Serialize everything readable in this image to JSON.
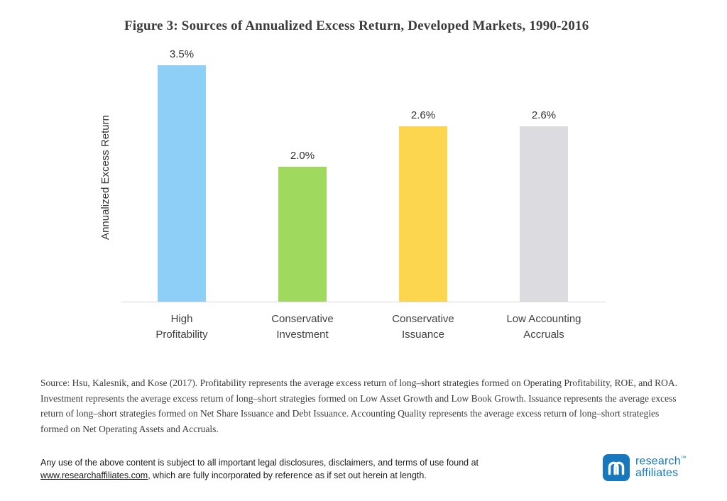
{
  "title": "Figure 3: Sources of Annualized Excess Return, Developed Markets, 1990-2016",
  "chart_data": {
    "type": "bar",
    "title": "Figure 3: Sources of Annualized Excess Return, Developed Markets, 1990-2016",
    "categories": [
      "High Profitability",
      "Conservative Investment",
      "Conservative Issuance",
      "Low Accounting Accruals"
    ],
    "category_lines": [
      [
        "High",
        "Profitability"
      ],
      [
        "Conservative",
        "Investment"
      ],
      [
        "Conservative",
        "Issuance"
      ],
      [
        "Low Accounting",
        "Accruals"
      ]
    ],
    "values": [
      3.5,
      2.0,
      2.6,
      2.6
    ],
    "value_labels": [
      "3.5%",
      "2.0%",
      "2.6%",
      "2.6%"
    ],
    "colors": [
      "#8DCFF7",
      "#9FD95E",
      "#FBD64E",
      "#DBDBE0"
    ],
    "xlabel": "",
    "ylabel": "Annualized Excess Return",
    "ylim": [
      0,
      3.7
    ],
    "grid": false,
    "legend": "none"
  },
  "source": "Source: Hsu, Kalesnik, and Kose (2017). Profitability represents the average excess return of long–short strategies formed on Operating Profitability, ROE, and ROA. Investment represents the average excess return of long–short strategies formed on Low Asset Growth and Low Book Growth. Issuance represents the average excess return of long–short strategies formed on Net Share Issuance and Debt Issuance. Accounting Quality represents the average excess return of long–short strategies formed on Net Operating Assets and Accruals.",
  "legal": {
    "before": "Any use of the above content is subject to all important legal disclosures, disclaimers, and terms of use found at ",
    "link": "www.researchaffiliates.com",
    "after": ", which are fully incorporated by reference as if set out herein at length."
  },
  "logo": {
    "line1": "research",
    "line2": "affiliates",
    "trademark": "™"
  }
}
